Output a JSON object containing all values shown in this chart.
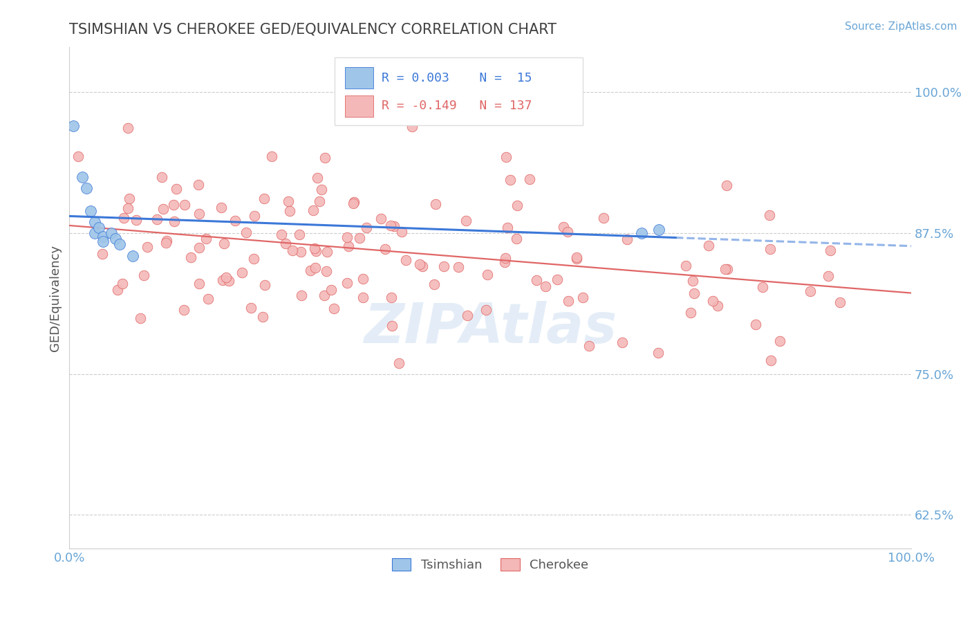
{
  "title": "TSIMSHIAN VS CHEROKEE GED/EQUIVALENCY CORRELATION CHART",
  "source_text": "Source: ZipAtlas.com",
  "ylabel": "GED/Equivalency",
  "xlim": [
    0.0,
    1.0
  ],
  "ylim": [
    0.595,
    1.04
  ],
  "yticks": [
    0.625,
    0.75,
    0.875,
    1.0
  ],
  "ytick_labels": [
    "62.5%",
    "75.0%",
    "87.5%",
    "100.0%"
  ],
  "xtick_labels": [
    "0.0%",
    "100.0%"
  ],
  "xticks": [
    0.0,
    1.0
  ],
  "blue_fill": "#9fc5e8",
  "pink_fill": "#f4b8b8",
  "blue_edge": "#3c78d8",
  "pink_edge": "#e06666",
  "pink_line": "#e06666",
  "blue_line": "#3c78d8",
  "axis_color": "#6aa6d6",
  "title_color": "#404040",
  "grid_color": "#cccccc",
  "watermark_color": "#c5d9ef"
}
